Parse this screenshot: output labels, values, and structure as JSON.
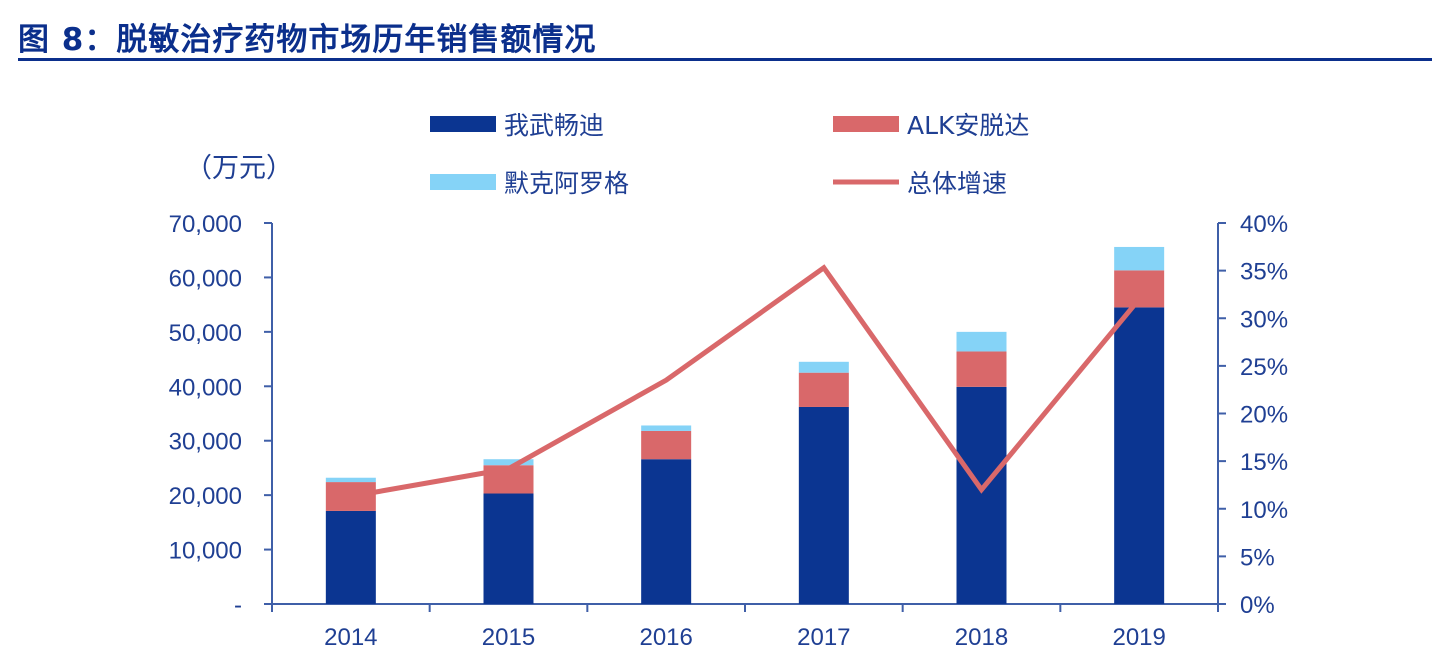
{
  "page": {
    "title": "图 8：脱敏治疗药物市场历年销售额情况"
  },
  "chart_data": {
    "type": "bar",
    "stacked": true,
    "title": "图 8：脱敏治疗药物市场历年销售额情况",
    "y_unit_label": "（万元）",
    "categories": [
      "2014",
      "2015",
      "2016",
      "2017",
      "2018",
      "2019"
    ],
    "ylim": [
      0,
      70000
    ],
    "y_ticks": [
      0,
      10000,
      20000,
      30000,
      40000,
      50000,
      60000,
      70000
    ],
    "y_tick_labels": [
      "-",
      "10,000",
      "20,000",
      "30,000",
      "40,000",
      "50,000",
      "60,000",
      "70,000"
    ],
    "y2lim": [
      0,
      0.4
    ],
    "y2_ticks": [
      0,
      0.05,
      0.1,
      0.15,
      0.2,
      0.25,
      0.3,
      0.35,
      0.4
    ],
    "y2_tick_labels": [
      "0%",
      "5%",
      "10%",
      "15%",
      "20%",
      "25%",
      "30%",
      "35%",
      "40%"
    ],
    "series": [
      {
        "name": "我武畅迪",
        "type": "bar",
        "color": "#0b3591",
        "values": [
          17100,
          20300,
          26600,
          36200,
          39900,
          54500
        ]
      },
      {
        "name": "ALK安脱达",
        "type": "bar",
        "color": "#d9686a",
        "values": [
          5300,
          5200,
          5200,
          6300,
          6500,
          6800
        ]
      },
      {
        "name": "默克阿罗格",
        "type": "bar",
        "color": "#85d3f7",
        "values": [
          800,
          1100,
          1000,
          2000,
          3600,
          4300
        ]
      },
      {
        "name": "总体增速",
        "type": "line",
        "axis": "y2",
        "color": "#d9686a",
        "values": [
          0.113,
          0.142,
          0.235,
          0.353,
          0.12,
          0.32
        ]
      }
    ],
    "grid": false,
    "legend": "top"
  }
}
